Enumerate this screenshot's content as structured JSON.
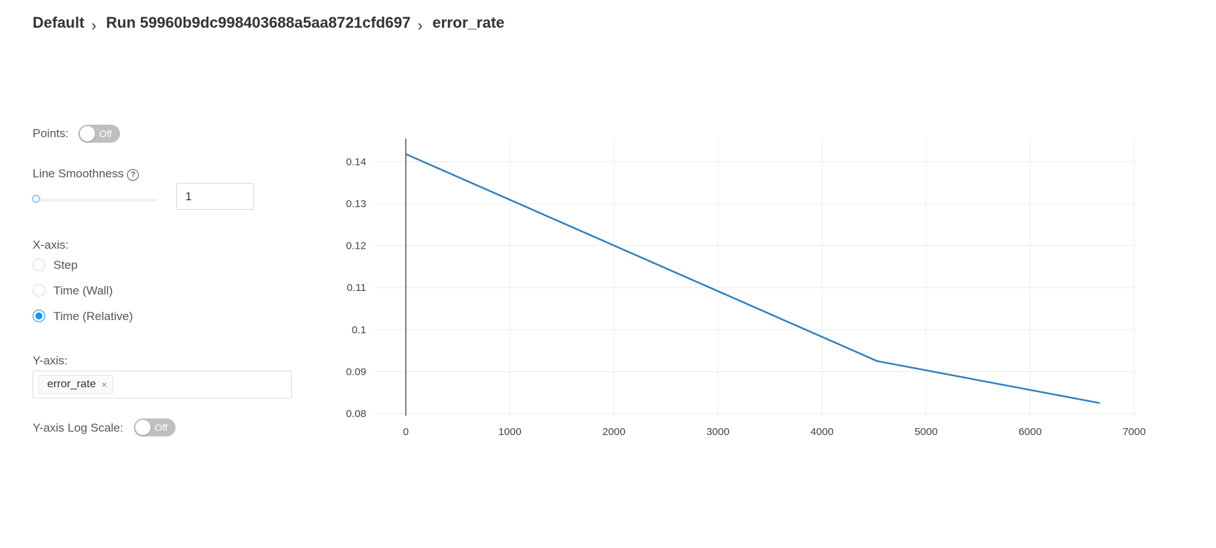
{
  "breadcrumb": {
    "experiment": "Default",
    "run": "Run 59960b9dc998403688a5aa8721cfd697",
    "metric": "error_rate"
  },
  "controls": {
    "points_label": "Points:",
    "points_toggle": "Off",
    "smoothness_label": "Line Smoothness",
    "smoothness_help_icon": "question-circle-icon",
    "smoothness_value": "1",
    "smoothness_slider_fraction": 0,
    "xaxis_label": "X-axis:",
    "xaxis_options": [
      {
        "label": "Step",
        "checked": false
      },
      {
        "label": "Time (Wall)",
        "checked": false
      },
      {
        "label": "Time (Relative)",
        "checked": true
      }
    ],
    "yaxis_label": "Y-axis:",
    "yaxis_tag": "error_rate",
    "yaxis_tag_close": "×",
    "log_scale_label": "Y-axis Log Scale:",
    "log_scale_toggle": "Off"
  },
  "colors": {
    "line": "#3182bd",
    "accent": "#1890ff",
    "toggle_off": "#bfbfbf"
  },
  "chart_data": {
    "type": "line",
    "series": [
      {
        "x": [
          0,
          4530,
          6670
        ],
        "y": [
          0.1418,
          0.0925,
          0.0825
        ]
      }
    ],
    "xlim": [
      -300,
      7000
    ],
    "ylim": [
      0.0795,
      0.1455
    ],
    "xticks": [
      0,
      1000,
      2000,
      3000,
      4000,
      5000,
      6000,
      7000
    ],
    "yticks": [
      0.08,
      0.09,
      0.1,
      0.11,
      0.12,
      0.13,
      0.14
    ],
    "xtick_labels": [
      "0",
      "1000",
      "2000",
      "3000",
      "4000",
      "5000",
      "6000",
      "7000"
    ],
    "ytick_labels": [
      "0.08",
      "0.09",
      "0.1",
      "0.11",
      "0.12",
      "0.13",
      "0.14"
    ],
    "grid": true
  }
}
